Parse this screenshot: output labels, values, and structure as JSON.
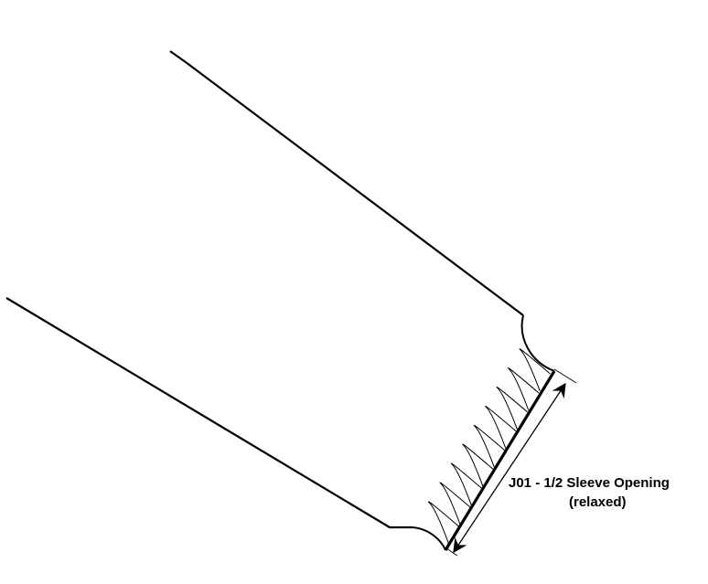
{
  "measurement": {
    "code_label": "J01 - 1/2 Sleeve Opening",
    "condition_label": "(relaxed)"
  },
  "colors": {
    "outline": "#000000",
    "background": "#ffffff"
  }
}
